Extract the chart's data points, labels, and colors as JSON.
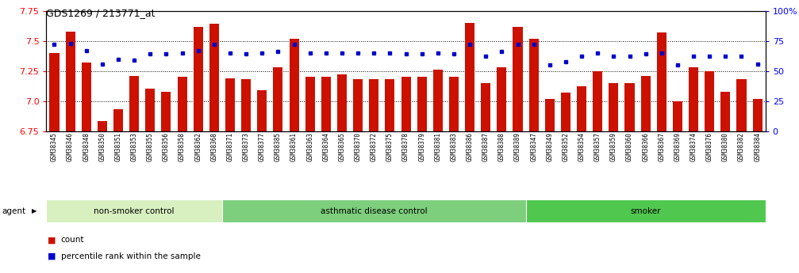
{
  "title": "GDS1269 / 213771_at",
  "samples": [
    "GSM38345",
    "GSM38346",
    "GSM38348",
    "GSM38350",
    "GSM38351",
    "GSM38353",
    "GSM38355",
    "GSM38356",
    "GSM38358",
    "GSM38362",
    "GSM38368",
    "GSM38371",
    "GSM38373",
    "GSM38377",
    "GSM38385",
    "GSM38361",
    "GSM38363",
    "GSM38364",
    "GSM38365",
    "GSM38370",
    "GSM38372",
    "GSM38375",
    "GSM38378",
    "GSM38379",
    "GSM38381",
    "GSM38383",
    "GSM38386",
    "GSM38387",
    "GSM38388",
    "GSM38389",
    "GSM38347",
    "GSM38349",
    "GSM38352",
    "GSM38354",
    "GSM38357",
    "GSM38359",
    "GSM38360",
    "GSM38366",
    "GSM38367",
    "GSM38369",
    "GSM38374",
    "GSM38376",
    "GSM38380",
    "GSM38382",
    "GSM38384"
  ],
  "counts": [
    7.4,
    7.58,
    7.32,
    6.83,
    6.93,
    7.21,
    7.1,
    7.08,
    7.2,
    7.62,
    7.64,
    7.19,
    7.18,
    7.09,
    7.28,
    7.52,
    7.2,
    7.2,
    7.22,
    7.18,
    7.18,
    7.18,
    7.2,
    7.2,
    7.26,
    7.2,
    7.65,
    7.15,
    7.28,
    7.62,
    7.52,
    7.02,
    7.07,
    7.12,
    7.25,
    7.15,
    7.15,
    7.21,
    7.57,
    7.0,
    7.28,
    7.25,
    7.08,
    7.18,
    7.02
  ],
  "percentiles": [
    72,
    73,
    67,
    56,
    60,
    59,
    64,
    64,
    65,
    67,
    72,
    65,
    64,
    65,
    66,
    72,
    65,
    65,
    65,
    65,
    65,
    65,
    64,
    64,
    65,
    64,
    72,
    62,
    66,
    72,
    72,
    55,
    58,
    62,
    65,
    62,
    62,
    64,
    65,
    55,
    62,
    62,
    62,
    62,
    56
  ],
  "groups": [
    {
      "label": "non-smoker control",
      "start": 0,
      "end": 11,
      "color": "#d8f0c0"
    },
    {
      "label": "asthmatic disease control",
      "start": 11,
      "end": 30,
      "color": "#7dce7d"
    },
    {
      "label": "smoker",
      "start": 30,
      "end": 45,
      "color": "#50c850"
    }
  ],
  "ymin": 6.75,
  "ymax": 7.75,
  "yticks_left": [
    6.75,
    7.0,
    7.25,
    7.5,
    7.75
  ],
  "yticks_right": [
    0,
    25,
    50,
    75,
    100
  ],
  "bar_color": "#cc1100",
  "dot_color": "#0000cc",
  "agent_label": "agent"
}
